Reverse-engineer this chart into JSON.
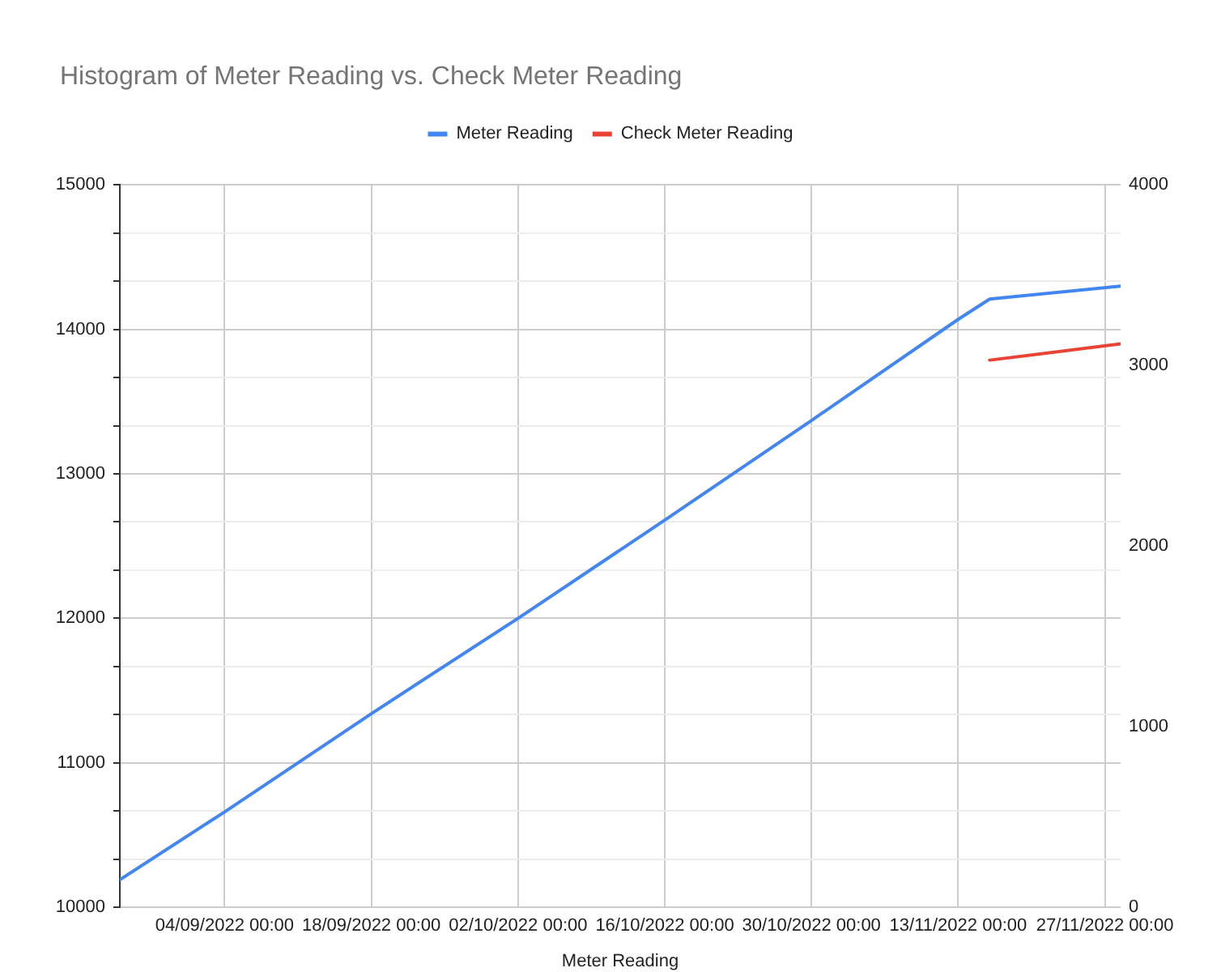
{
  "chart_data": {
    "type": "line",
    "title": "Histogram of Meter Reading vs. Check Meter Reading",
    "xlabel": "Meter Reading",
    "x": [
      "2022-08-25",
      "2022-09-04",
      "2022-09-18",
      "2022-10-02",
      "2022-10-16",
      "2022-10-30",
      "2022-11-13",
      "2022-11-16",
      "2022-11-28T12:00"
    ],
    "series": [
      {
        "name": "Meter Reading",
        "color": "#4285f4",
        "values": [
          10190,
          10660,
          11340,
          12000,
          12680,
          13370,
          14070,
          14210,
          14300
        ]
      },
      {
        "name": "Check Meter Reading",
        "color": "#ea4335",
        "axis": "y2",
        "x": [
          "2022-11-16",
          "2022-11-28T12:00"
        ],
        "values": [
          3030,
          3120
        ]
      }
    ],
    "xlim": [
      "2022-08-25",
      "2022-11-28T12:00"
    ],
    "xticks": [
      {
        "value": "2022-09-04",
        "label": "04/09/2022 00:00"
      },
      {
        "value": "2022-09-18",
        "label": "18/09/2022 00:00"
      },
      {
        "value": "2022-10-02",
        "label": "02/10/2022 00:00"
      },
      {
        "value": "2022-10-16",
        "label": "16/10/2022 00:00"
      },
      {
        "value": "2022-10-30",
        "label": "30/10/2022 00:00"
      },
      {
        "value": "2022-11-13",
        "label": "13/11/2022 00:00"
      },
      {
        "value": "2022-11-27",
        "label": "27/11/2022 00:00"
      }
    ],
    "ylim": [
      10000,
      15000
    ],
    "yticks": [
      10000,
      {
        "value": 10333.33,
        "label": null
      },
      {
        "value": 10666.67,
        "label": null
      },
      11000,
      {
        "value": 11333.33,
        "label": null
      },
      {
        "value": 11666.67,
        "label": null
      },
      12000,
      {
        "value": 12333.33,
        "label": null
      },
      {
        "value": 12666.67,
        "label": null
      },
      13000,
      {
        "value": 13333.33,
        "label": null
      },
      {
        "value": 13666.67,
        "label": null
      },
      14000,
      {
        "value": 14333.33,
        "label": null
      },
      {
        "value": 14666.67,
        "label": null
      },
      15000
    ],
    "y2lim": [
      0,
      4000
    ],
    "y2ticks": [
      0,
      1000,
      2000,
      3000,
      4000
    ],
    "grid": true,
    "legend": "top"
  }
}
